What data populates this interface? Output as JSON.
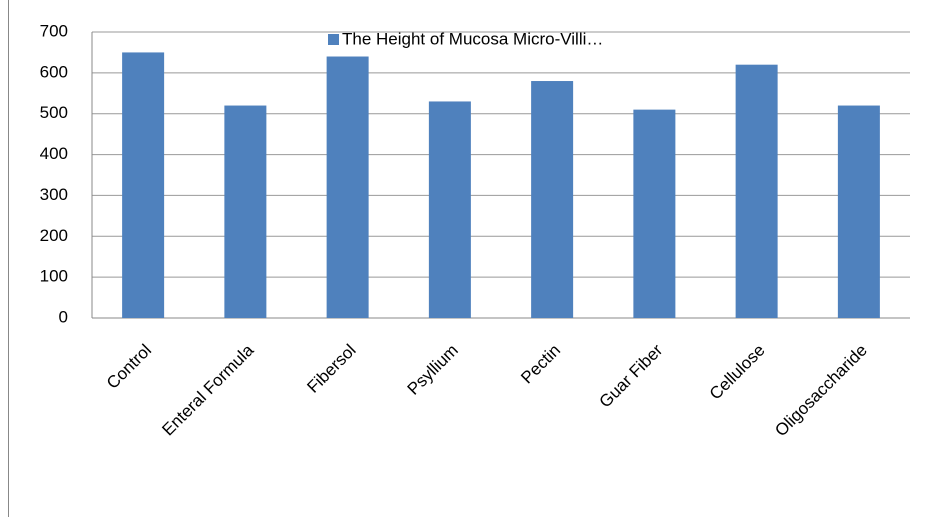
{
  "chart_data": {
    "type": "bar",
    "categories": [
      "Control",
      "Enteral Formula",
      "Fibersol",
      "Psyllium",
      "Pectin",
      "Guar Fiber",
      "Cellulose",
      "Oligosaccharide"
    ],
    "series": [
      {
        "name": "The Height of Mucosa Micro-Villi…",
        "color": "#4f81bd",
        "values": [
          650,
          520,
          640,
          530,
          580,
          510,
          620,
          520
        ]
      }
    ],
    "ylim": [
      0,
      700
    ],
    "yticks": [
      0,
      100,
      200,
      300,
      400,
      500,
      600,
      700
    ],
    "grid": true,
    "legend": "top"
  }
}
